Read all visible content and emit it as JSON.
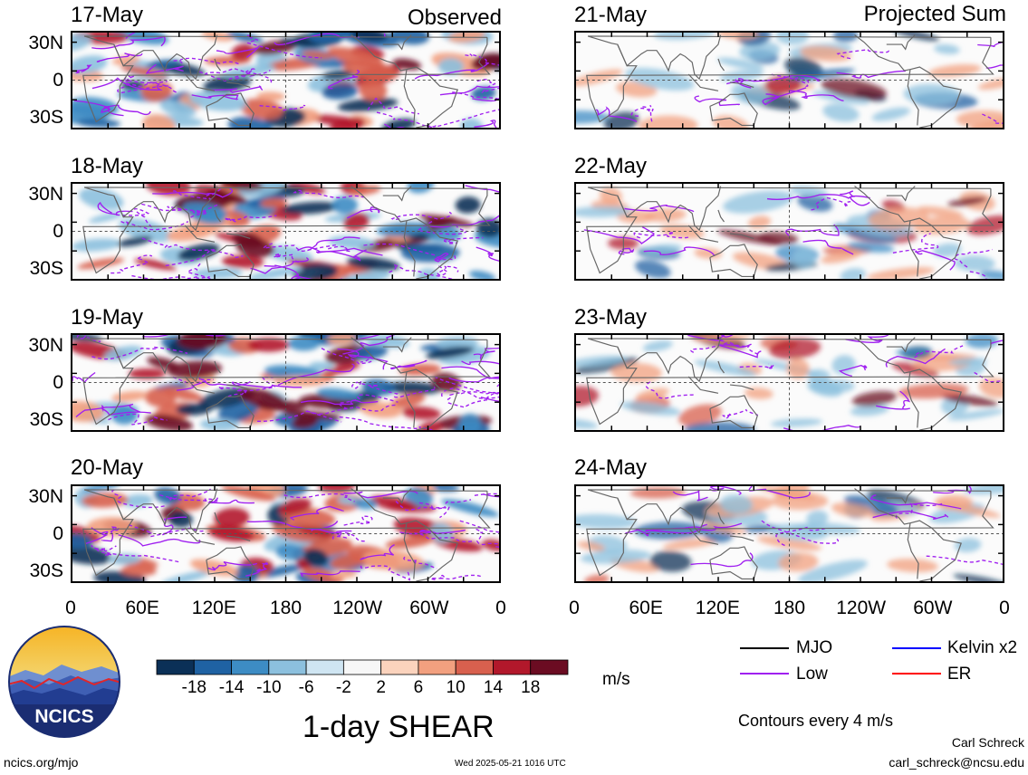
{
  "columns": {
    "left_title": "Observed",
    "right_title": "Projected Sum"
  },
  "panels": {
    "left": [
      {
        "date": "17-May"
      },
      {
        "date": "18-May"
      },
      {
        "date": "19-May"
      },
      {
        "date": "20-May"
      }
    ],
    "right": [
      {
        "date": "21-May"
      },
      {
        "date": "22-May"
      },
      {
        "date": "23-May"
      },
      {
        "date": "24-May"
      }
    ]
  },
  "lat_labels": [
    "30N",
    "0",
    "30S"
  ],
  "lon_labels": [
    "0",
    "60E",
    "120E",
    "180",
    "120W",
    "60W",
    "0"
  ],
  "colorbar": {
    "tick_labels": [
      "-18",
      "-14",
      "-10",
      "-6",
      "-2",
      "2",
      "6",
      "10",
      "14",
      "18"
    ],
    "colors": [
      "#0b3057",
      "#1f62a3",
      "#3d8cc4",
      "#8cc0de",
      "#cfe5f2",
      "#f7f7f7",
      "#fbd3bd",
      "#f2a07f",
      "#d8604e",
      "#b2182b",
      "#6b0c22"
    ],
    "unit": "m/s",
    "title": "1-day SHEAR"
  },
  "legend": {
    "items": [
      {
        "label": "MJO",
        "color": "#000000",
        "icon": "line-swatch"
      },
      {
        "label": "Kelvin x2",
        "color": "#0000ff",
        "icon": "line-swatch"
      },
      {
        "label": "Low",
        "color": "#a020f0",
        "icon": "line-swatch"
      },
      {
        "label": "ER",
        "color": "#ff0000",
        "icon": "line-swatch"
      }
    ],
    "contours_note": "Contours every 4 m/s"
  },
  "logo": {
    "text": "NCICS",
    "icon": "ncics-logo"
  },
  "footer": {
    "url": "ncics.org/mjo",
    "timestamp": "Wed 2025-05-21 1016 UTC",
    "author": "Carl Schreck",
    "email": "carl_schreck@ncsu.edu"
  }
}
